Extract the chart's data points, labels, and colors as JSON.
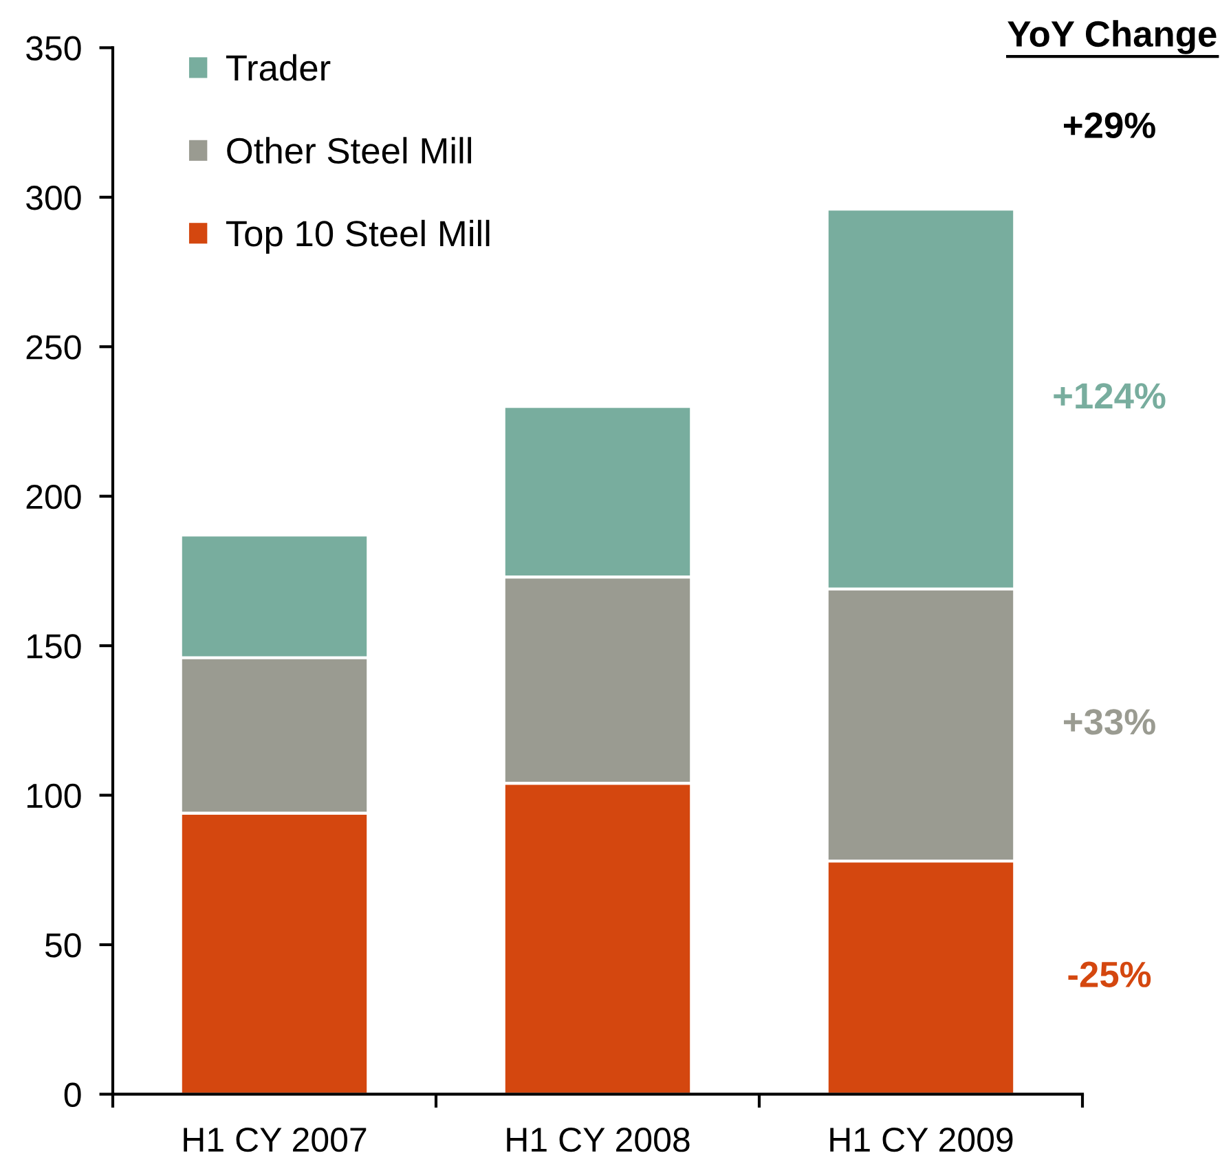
{
  "chart_data": {
    "type": "bar",
    "stacked": true,
    "categories": [
      "H1 CY 2007",
      "H1 CY 2008",
      "H1 CY 2009"
    ],
    "series": [
      {
        "name": "Top 10 Steel Mill",
        "color": "#d4470f",
        "values": [
          94,
          104,
          78
        ]
      },
      {
        "name": "Other Steel Mill",
        "color": "#9a9b91",
        "values": [
          52,
          69,
          91
        ]
      },
      {
        "name": "Trader",
        "color": "#78ad9e",
        "values": [
          41,
          57,
          127
        ]
      }
    ],
    "ylim": [
      0,
      350
    ],
    "yticks": [
      0,
      50,
      100,
      150,
      200,
      250,
      300,
      350
    ],
    "legend": "top left",
    "annotations": [
      "YoY Change",
      "+29%",
      "+124%",
      "+33%",
      "-25%"
    ]
  }
}
